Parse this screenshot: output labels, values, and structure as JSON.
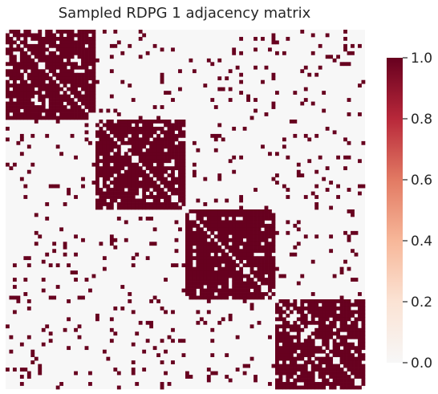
{
  "chart_data": {
    "type": "heatmap",
    "title": "Sampled RDPG 1 adjacency matrix",
    "n_nodes": 100,
    "n_blocks": 4,
    "block_size": 25,
    "within_block_edge_probability": 0.85,
    "between_block_edge_probability": 0.07,
    "values": "binary 0/1 symmetric adjacency matrix, zero diagonal",
    "colorbar": {
      "min": 0.0,
      "max": 1.0,
      "ticks": [
        "0.0",
        "0.2",
        "0.4",
        "0.6",
        "0.8",
        "1.0"
      ],
      "colormap": "RdBu_r (upper half)",
      "color_min": "#f7f7f7",
      "color_max": "#67001f"
    },
    "xlabel": "",
    "ylabel": "",
    "grid": false
  }
}
